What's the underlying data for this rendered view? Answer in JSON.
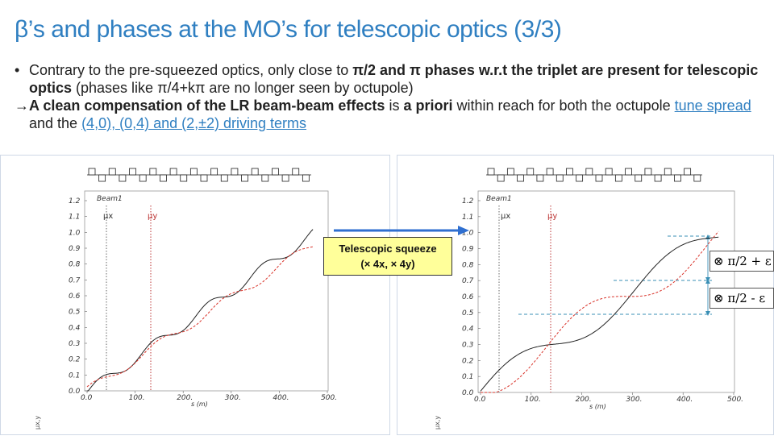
{
  "title": "β’s and phases at the MO’s for telescopic optics (3/3)",
  "bullets": {
    "b1_marker": "•",
    "b1_a": "Contrary to the pre-squeezed optics, only close to ",
    "b1_bold1": "π/2 and π phases w.r.t the triplet are present for telescopic optics",
    "b1_b": " (phases like π/4+kπ are no longer seen by octupole)",
    "b2_marker": "→",
    "b2_bold1": "A clean compensation of the LR beam-beam effects",
    "b2_a": " is ",
    "b2_bold2": "a priori",
    "b2_b": " within reach for both  the octupole ",
    "b2_link1": "tune spread",
    "b2_c": " and the ",
    "b2_link2": "(4,0), (0,4) and (2,±2) driving terms"
  },
  "callout": {
    "line1": "Telescopic squeeze",
    "line2": "(× 4x, × 4y)"
  },
  "eps_top": "⊗ π/2 + ε",
  "eps_bottom": "⊗ π/2 - ε",
  "plots": {
    "left": {
      "ylabel": "μx,y",
      "xlabel": "s (m)",
      "xticks": [
        "0.0",
        "100.",
        "200.",
        "300.",
        "400.",
        "500."
      ],
      "yticks": [
        "0.0",
        "0.1",
        "0.2",
        "0.3",
        "0.4",
        "0.5",
        "0.6",
        "0.7",
        "0.8",
        "0.9",
        "1.0",
        "1.1",
        "1.2"
      ],
      "beam_label": "Beam1",
      "mux": "μx",
      "muy": "μy"
    },
    "right": {
      "ylabel": "μx,y",
      "xlabel": "s (m)",
      "xticks": [
        "0.0",
        "100.",
        "200.",
        "300.",
        "400.",
        "500."
      ],
      "yticks": [
        "0.0",
        "0.1",
        "0.2",
        "0.3",
        "0.4",
        "0.5",
        "0.6",
        "0.7",
        "0.8",
        "0.9",
        "1.0",
        "1.1",
        "1.2"
      ],
      "beam_label": "Beam1",
      "mux": "μx",
      "muy": "μy"
    }
  },
  "colors": {
    "title": "#2f7fc1",
    "mux_line": "#222222",
    "muy_line": "#d9342b",
    "arrow": "#2f6fd0",
    "guide": "#3a8fb5"
  }
}
